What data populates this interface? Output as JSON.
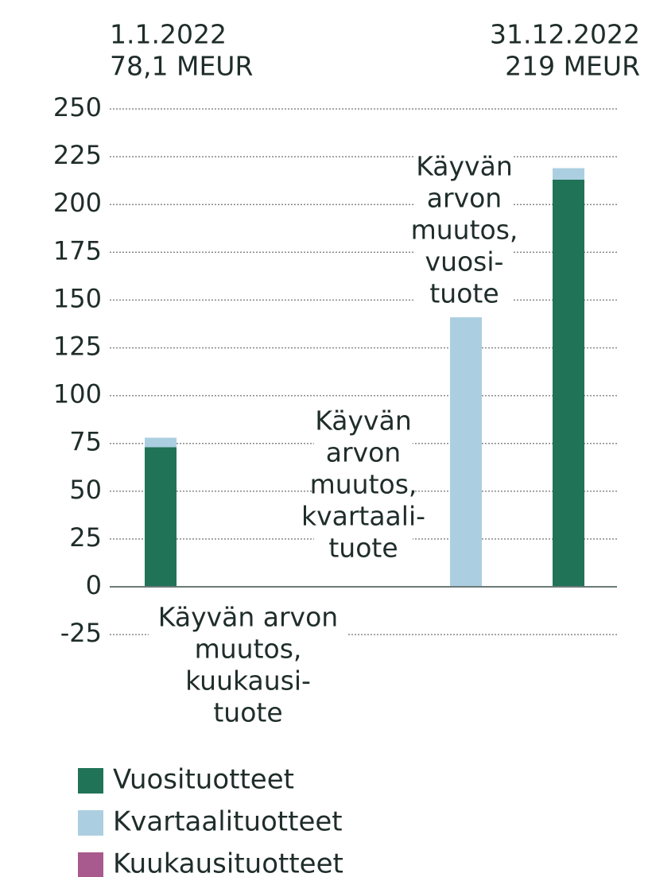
{
  "chart_data": {
    "type": "bar",
    "stacked": true,
    "categories": [
      [
        "1.1.2022",
        "78,1 MEUR"
      ],
      [
        "Käyvän arvon",
        "muutos,",
        "kuukausi-",
        "tuote"
      ],
      [
        "Käyvän",
        "arvon",
        "muutos,",
        "kvartaali-",
        "tuote"
      ],
      [
        "Käyvän",
        "arvon",
        "muutos,",
        "vuosi-",
        "tuote"
      ],
      [
        "31.12.2022",
        "219 MEUR"
      ]
    ],
    "series": [
      {
        "name": "Vuosituotteet",
        "color": "#217357",
        "values": [
          73,
          0,
          0,
          0,
          213
        ]
      },
      {
        "name": "Kvartaalituotteet",
        "color": "#abcfe1",
        "values": [
          5,
          0,
          0,
          141,
          6
        ]
      },
      {
        "name": "Kuukausituotteet",
        "color": "#a85a8e",
        "values": [
          0,
          0,
          0,
          0,
          0
        ]
      }
    ],
    "ylim": [
      -25,
      250
    ],
    "yticks": [
      -25,
      0,
      25,
      50,
      75,
      100,
      125,
      150,
      175,
      200,
      225,
      250
    ],
    "grid": true
  }
}
